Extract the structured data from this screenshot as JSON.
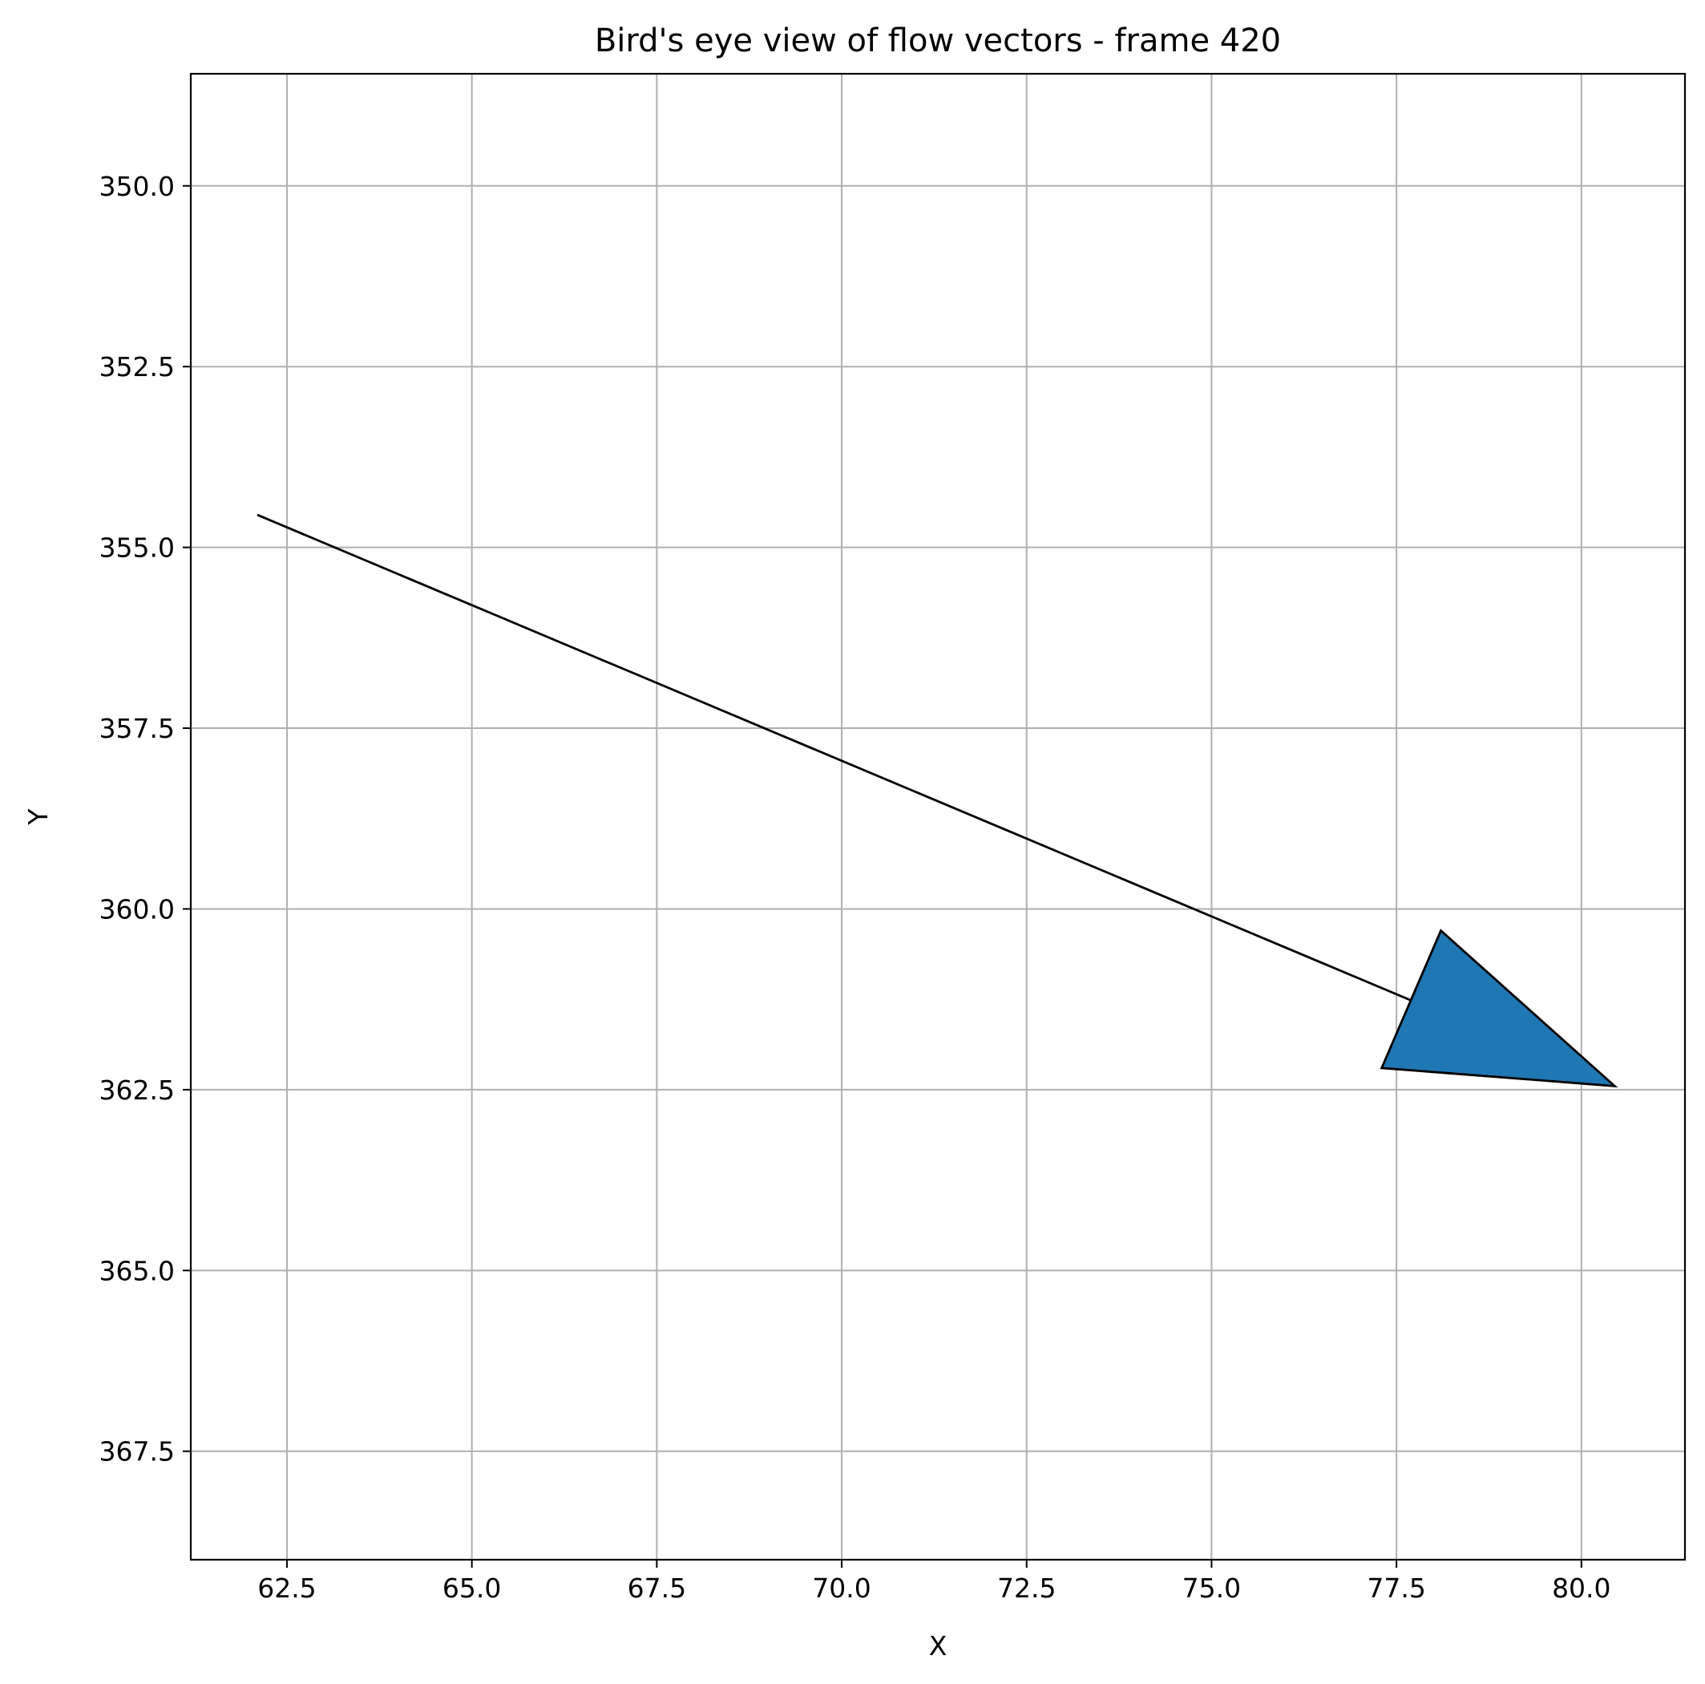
{
  "chart_data": {
    "type": "quiver",
    "title": "Bird's eye view of flow vectors - frame 420",
    "xlabel": "X",
    "ylabel": "Y",
    "xlim": [
      61.2,
      81.4
    ],
    "ylim": [
      369.0,
      348.45
    ],
    "y_inverted": true,
    "grid": true,
    "x_ticks": [
      62.5,
      65.0,
      67.5,
      70.0,
      72.5,
      75.0,
      77.5,
      80.0
    ],
    "x_tick_labels": [
      "62.5",
      "65.0",
      "67.5",
      "70.0",
      "72.5",
      "75.0",
      "77.5",
      "80.0"
    ],
    "y_ticks": [
      350.0,
      352.5,
      355.0,
      357.5,
      360.0,
      362.5,
      365.0,
      367.5
    ],
    "y_tick_labels": [
      "350.0",
      "352.5",
      "355.0",
      "357.5",
      "360.0",
      "362.5",
      "365.0",
      "367.5"
    ],
    "arrows": [
      {
        "start": [
          62.1,
          354.55
        ],
        "end": [
          80.45,
          362.45
        ],
        "head_vertices": [
          [
            78.1,
            360.3
          ],
          [
            77.3,
            362.2
          ],
          [
            80.45,
            362.45
          ]
        ],
        "head_color": "#1f77b4",
        "line_color": "#000000"
      }
    ]
  }
}
